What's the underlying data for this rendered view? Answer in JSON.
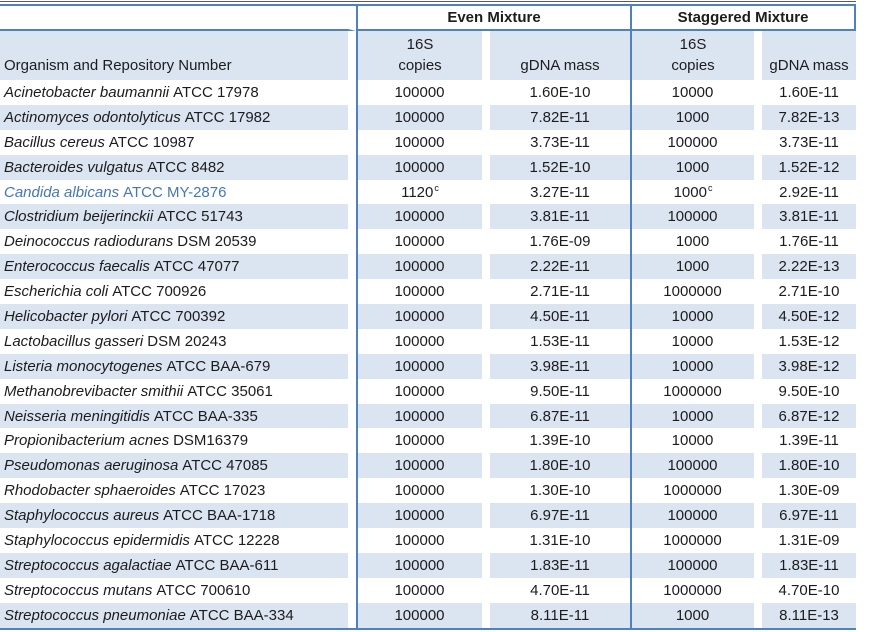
{
  "colors": {
    "accent_border": "#4f81bd",
    "row_shade": "#dbe5f1",
    "highlight_text": "#4577b6",
    "top_rule": "#595959"
  },
  "table": {
    "group_headers": [
      {
        "label": "Even Mixture"
      },
      {
        "label": "Staggered Mixture"
      }
    ],
    "column_headers": {
      "organism": "Organism and Repository Number",
      "copies_line1": "16S",
      "copies_line2": "copies",
      "gdna": "gDNA mass"
    },
    "footnote_marker": "c",
    "rows": [
      {
        "organism_italic": "Acinetobacter baumannii",
        "organism_id": "ATCC 17978",
        "even_copies": "100000",
        "even_copies_sup": "",
        "even_gdna": "1.60E-10",
        "stag_copies": "10000",
        "stag_copies_sup": "",
        "stag_gdna": "1.60E-11",
        "highlight": false
      },
      {
        "organism_italic": "Actinomyces odontolyticus",
        "organism_id": "ATCC 17982",
        "even_copies": "100000",
        "even_copies_sup": "",
        "even_gdna": "7.82E-11",
        "stag_copies": "1000",
        "stag_copies_sup": "",
        "stag_gdna": "7.82E-13",
        "highlight": false
      },
      {
        "organism_italic": "Bacillus cereus",
        "organism_id": "ATCC 10987",
        "even_copies": "100000",
        "even_copies_sup": "",
        "even_gdna": "3.73E-11",
        "stag_copies": "100000",
        "stag_copies_sup": "",
        "stag_gdna": "3.73E-11",
        "highlight": false
      },
      {
        "organism_italic": "Bacteroides vulgatus",
        "organism_id": "ATCC 8482",
        "even_copies": "100000",
        "even_copies_sup": "",
        "even_gdna": "1.52E-10",
        "stag_copies": "1000",
        "stag_copies_sup": "",
        "stag_gdna": "1.52E-12",
        "highlight": false
      },
      {
        "organism_italic": "Candida albicans",
        "organism_id": "ATCC MY-2876",
        "even_copies": "1120",
        "even_copies_sup": "c",
        "even_gdna": "3.27E-11",
        "stag_copies": "1000",
        "stag_copies_sup": "c",
        "stag_gdna": "2.92E-11",
        "highlight": true
      },
      {
        "organism_italic": "Clostridium beijerinckii",
        "organism_id": "ATCC 51743",
        "even_copies": "100000",
        "even_copies_sup": "",
        "even_gdna": "3.81E-11",
        "stag_copies": "100000",
        "stag_copies_sup": "",
        "stag_gdna": "3.81E-11",
        "highlight": false
      },
      {
        "organism_italic": "Deinococcus radiodurans",
        "organism_id": "DSM 20539",
        "even_copies": "100000",
        "even_copies_sup": "",
        "even_gdna": "1.76E-09",
        "stag_copies": "1000",
        "stag_copies_sup": "",
        "stag_gdna": "1.76E-11",
        "highlight": false
      },
      {
        "organism_italic": "Enterococcus faecalis",
        "organism_id": "ATCC 47077",
        "even_copies": "100000",
        "even_copies_sup": "",
        "even_gdna": "2.22E-11",
        "stag_copies": "1000",
        "stag_copies_sup": "",
        "stag_gdna": "2.22E-13",
        "highlight": false
      },
      {
        "organism_italic": "Escherichia coli",
        "organism_id": "ATCC 700926",
        "even_copies": "100000",
        "even_copies_sup": "",
        "even_gdna": "2.71E-11",
        "stag_copies": "1000000",
        "stag_copies_sup": "",
        "stag_gdna": "2.71E-10",
        "highlight": false
      },
      {
        "organism_italic": "Helicobacter pylori",
        "organism_id": "ATCC 700392",
        "even_copies": "100000",
        "even_copies_sup": "",
        "even_gdna": "4.50E-11",
        "stag_copies": "10000",
        "stag_copies_sup": "",
        "stag_gdna": "4.50E-12",
        "highlight": false
      },
      {
        "organism_italic": "Lactobacillus gasseri",
        "organism_id": "DSM 20243",
        "even_copies": "100000",
        "even_copies_sup": "",
        "even_gdna": "1.53E-11",
        "stag_copies": "10000",
        "stag_copies_sup": "",
        "stag_gdna": "1.53E-12",
        "highlight": false
      },
      {
        "organism_italic": "Listeria monocytogenes",
        "organism_id": "ATCC BAA-679",
        "even_copies": "100000",
        "even_copies_sup": "",
        "even_gdna": "3.98E-11",
        "stag_copies": "10000",
        "stag_copies_sup": "",
        "stag_gdna": "3.98E-12",
        "highlight": false
      },
      {
        "organism_italic": "Methanobrevibacter smithii",
        "organism_id": "ATCC 35061",
        "even_copies": "100000",
        "even_copies_sup": "",
        "even_gdna": "9.50E-11",
        "stag_copies": "1000000",
        "stag_copies_sup": "",
        "stag_gdna": "9.50E-10",
        "highlight": false
      },
      {
        "organism_italic": "Neisseria meningitidis",
        "organism_id": "ATCC BAA-335",
        "even_copies": "100000",
        "even_copies_sup": "",
        "even_gdna": "6.87E-11",
        "stag_copies": "10000",
        "stag_copies_sup": "",
        "stag_gdna": "6.87E-12",
        "highlight": false
      },
      {
        "organism_italic": "Propionibacterium acnes",
        "organism_id": "DSM16379",
        "even_copies": "100000",
        "even_copies_sup": "",
        "even_gdna": "1.39E-10",
        "stag_copies": "10000",
        "stag_copies_sup": "",
        "stag_gdna": "1.39E-11",
        "highlight": false
      },
      {
        "organism_italic": "Pseudomonas aeruginosa",
        "organism_id": "ATCC 47085",
        "even_copies": "100000",
        "even_copies_sup": "",
        "even_gdna": "1.80E-10",
        "stag_copies": "100000",
        "stag_copies_sup": "",
        "stag_gdna": "1.80E-10",
        "highlight": false
      },
      {
        "organism_italic": "Rhodobacter sphaeroides",
        "organism_id": "ATCC 17023",
        "even_copies": "100000",
        "even_copies_sup": "",
        "even_gdna": "1.30E-10",
        "stag_copies": "1000000",
        "stag_copies_sup": "",
        "stag_gdna": "1.30E-09",
        "highlight": false
      },
      {
        "organism_italic": "Staphylococcus aureus",
        "organism_id": "ATCC BAA-1718",
        "even_copies": "100000",
        "even_copies_sup": "",
        "even_gdna": "6.97E-11",
        "stag_copies": "100000",
        "stag_copies_sup": "",
        "stag_gdna": "6.97E-11",
        "highlight": false
      },
      {
        "organism_italic": "Staphylococcus epidermidis",
        "organism_id": "ATCC 12228",
        "even_copies": "100000",
        "even_copies_sup": "",
        "even_gdna": "1.31E-10",
        "stag_copies": "1000000",
        "stag_copies_sup": "",
        "stag_gdna": "1.31E-09",
        "highlight": false
      },
      {
        "organism_italic": "Streptococcus agalactiae",
        "organism_id": "ATCC BAA-611",
        "even_copies": "100000",
        "even_copies_sup": "",
        "even_gdna": "1.83E-11",
        "stag_copies": "100000",
        "stag_copies_sup": "",
        "stag_gdna": "1.83E-11",
        "highlight": false
      },
      {
        "organism_italic": "Streptococcus mutans",
        "organism_id": "ATCC 700610",
        "even_copies": "100000",
        "even_copies_sup": "",
        "even_gdna": "4.70E-11",
        "stag_copies": "1000000",
        "stag_copies_sup": "",
        "stag_gdna": "4.70E-10",
        "highlight": false
      },
      {
        "organism_italic": "Streptococcus pneumoniae",
        "organism_id": "ATCC BAA-334",
        "even_copies": "100000",
        "even_copies_sup": "",
        "even_gdna": "8.11E-11",
        "stag_copies": "1000",
        "stag_copies_sup": "",
        "stag_gdna": "8.11E-13",
        "highlight": false
      }
    ]
  }
}
